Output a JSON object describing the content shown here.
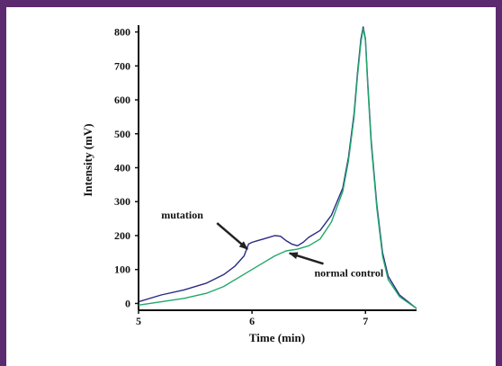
{
  "colors": {
    "frame_border": "#5c2a6e",
    "background": "#ffffff",
    "axis": "#111111"
  },
  "chart_data": {
    "type": "line",
    "xlabel": "Time (min)",
    "ylabel": "Intensity (mV)",
    "xlim": [
      5,
      7.45
    ],
    "ylim": [
      -20,
      820
    ],
    "x_ticks": [
      5,
      6,
      7
    ],
    "y_ticks": [
      0,
      100,
      200,
      300,
      400,
      500,
      600,
      700,
      800
    ],
    "grid": false,
    "legend": "none",
    "series": [
      {
        "name": "mutation",
        "color": "#2a2a86",
        "x": [
          5.0,
          5.2,
          5.4,
          5.6,
          5.75,
          5.85,
          5.93,
          5.97,
          6.0,
          6.05,
          6.1,
          6.15,
          6.2,
          6.25,
          6.3,
          6.35,
          6.4,
          6.45,
          6.5,
          6.6,
          6.7,
          6.8,
          6.85,
          6.9,
          6.93,
          6.96,
          6.98,
          7.0,
          7.02,
          7.05,
          7.1,
          7.15,
          7.2,
          7.3,
          7.45
        ],
        "y": [
          5,
          25,
          40,
          60,
          85,
          110,
          140,
          175,
          180,
          185,
          190,
          195,
          200,
          198,
          185,
          175,
          170,
          180,
          195,
          215,
          260,
          340,
          430,
          560,
          680,
          780,
          815,
          780,
          650,
          480,
          290,
          150,
          80,
          25,
          -15
        ]
      },
      {
        "name": "normal control",
        "color": "#1fa86a",
        "x": [
          5.0,
          5.2,
          5.4,
          5.6,
          5.75,
          5.9,
          6.0,
          6.1,
          6.2,
          6.3,
          6.4,
          6.5,
          6.6,
          6.7,
          6.8,
          6.85,
          6.9,
          6.93,
          6.96,
          6.98,
          7.0,
          7.02,
          7.05,
          7.1,
          7.15,
          7.2,
          7.3,
          7.45
        ],
        "y": [
          -5,
          5,
          15,
          30,
          50,
          80,
          100,
          120,
          140,
          155,
          160,
          170,
          190,
          240,
          330,
          420,
          550,
          670,
          770,
          810,
          775,
          640,
          470,
          280,
          140,
          70,
          20,
          -15
        ]
      }
    ],
    "annotations": [
      {
        "text": "mutation",
        "target_x": 5.96,
        "target_y": 160,
        "label_x": 5.2,
        "label_y": 250
      },
      {
        "text": "normal control",
        "target_x": 6.33,
        "target_y": 148,
        "label_x": 6.55,
        "label_y": 80
      }
    ]
  }
}
